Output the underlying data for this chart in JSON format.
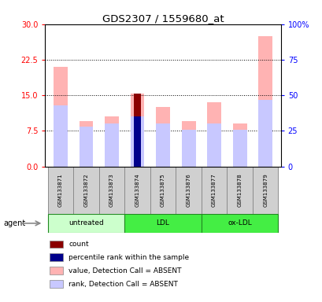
{
  "title": "GDS2307 / 1559680_at",
  "samples": [
    "GSM133871",
    "GSM133872",
    "GSM133873",
    "GSM133874",
    "GSM133875",
    "GSM133876",
    "GSM133877",
    "GSM133878",
    "GSM133879"
  ],
  "value_absent": [
    21.0,
    9.5,
    10.5,
    15.3,
    12.5,
    9.5,
    13.5,
    9.0,
    27.5
  ],
  "rank_absent_pct": [
    43,
    28,
    30,
    35,
    30,
    26,
    30,
    26,
    47
  ],
  "count_bar": [
    0,
    0,
    0,
    15.3,
    0,
    0,
    0,
    0,
    0
  ],
  "percentile_bar_pct": [
    0,
    0,
    0,
    35,
    0,
    0,
    0,
    0,
    0
  ],
  "left_ylim": [
    0,
    30
  ],
  "right_ylim": [
    0,
    100
  ],
  "left_yticks": [
    0,
    7.5,
    15,
    22.5,
    30
  ],
  "right_yticks": [
    0,
    25,
    50,
    75,
    100
  ],
  "bar_width": 0.55,
  "value_absent_color": "#ffb3b3",
  "rank_absent_color": "#c8c8ff",
  "count_color": "#8b0000",
  "percentile_color": "#00008b",
  "group_info": [
    {
      "name": "untreated",
      "start": 0,
      "end": 2,
      "color": "#ccffcc"
    },
    {
      "name": "LDL",
      "start": 3,
      "end": 5,
      "color": "#44ee44"
    },
    {
      "name": "ox-LDL",
      "start": 6,
      "end": 8,
      "color": "#44ee44"
    }
  ],
  "legend_items": [
    {
      "color": "#8b0000",
      "label": "count"
    },
    {
      "color": "#00008b",
      "label": "percentile rank within the sample"
    },
    {
      "color": "#ffb3b3",
      "label": "value, Detection Call = ABSENT"
    },
    {
      "color": "#c8c8ff",
      "label": "rank, Detection Call = ABSENT"
    }
  ]
}
